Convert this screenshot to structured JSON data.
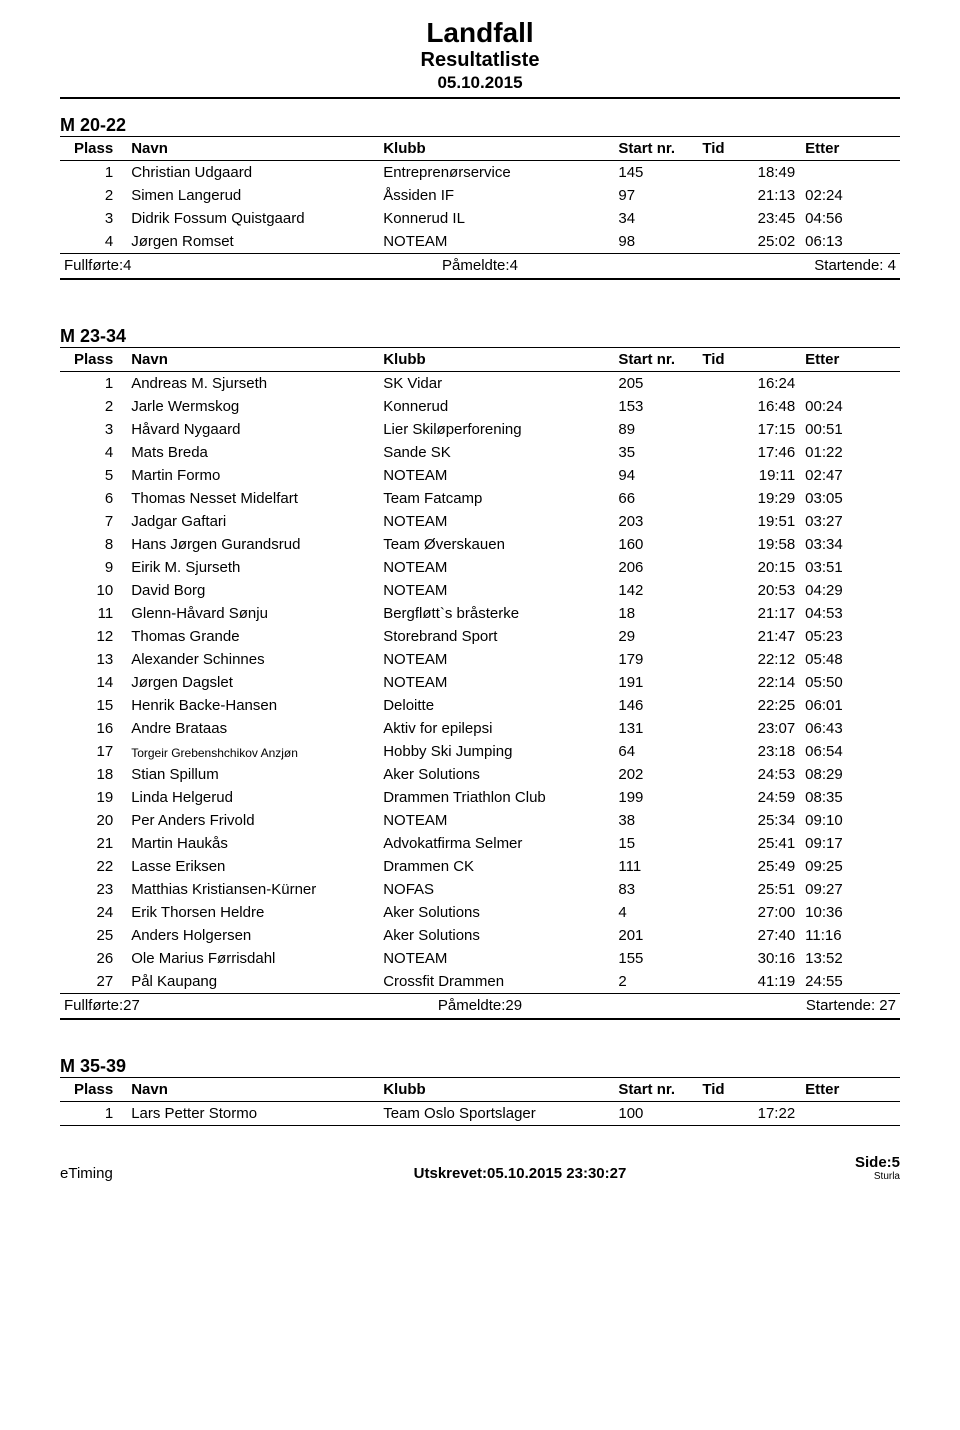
{
  "header": {
    "title": "Landfall",
    "subtitle": "Resultatliste",
    "date": "05.10.2015"
  },
  "columns": {
    "plass": "Plass",
    "navn": "Navn",
    "klubb": "Klubb",
    "start": "Start nr.",
    "tid": "Tid",
    "etter": "Etter"
  },
  "summary_labels": {
    "fullforte": "Fullførte:",
    "pameldte": "Påmeldte:",
    "startende": "Startende:"
  },
  "sections": [
    {
      "name": "M 20-22",
      "rows": [
        {
          "p": "1",
          "navn": "Christian Udgaard",
          "klubb": "Entreprenørservice",
          "start": "145",
          "tid": "18:49",
          "etter": ""
        },
        {
          "p": "2",
          "navn": "Simen Langerud",
          "klubb": "Åssiden IF",
          "start": "97",
          "tid": "21:13",
          "etter": "02:24"
        },
        {
          "p": "3",
          "navn": "Didrik Fossum Quistgaard",
          "klubb": "Konnerud IL",
          "start": "34",
          "tid": "23:45",
          "etter": "04:56"
        },
        {
          "p": "4",
          "navn": "Jørgen Romset",
          "klubb": "NOTEAM",
          "start": "98",
          "tid": "25:02",
          "etter": "06:13"
        }
      ],
      "summary": {
        "fullforte": "4",
        "pameldte": "4",
        "startende": "4"
      }
    },
    {
      "name": "M 23-34",
      "rows": [
        {
          "p": "1",
          "navn": "Andreas M. Sjurseth",
          "klubb": "SK Vidar",
          "start": "205",
          "tid": "16:24",
          "etter": ""
        },
        {
          "p": "2",
          "navn": "Jarle Wermskog",
          "klubb": "Konnerud",
          "start": "153",
          "tid": "16:48",
          "etter": "00:24"
        },
        {
          "p": "3",
          "navn": "Håvard Nygaard",
          "klubb": "Lier Skiløperforening",
          "start": "89",
          "tid": "17:15",
          "etter": "00:51"
        },
        {
          "p": "4",
          "navn": "Mats Breda",
          "klubb": "Sande SK",
          "start": "35",
          "tid": "17:46",
          "etter": "01:22"
        },
        {
          "p": "5",
          "navn": "Martin Formo",
          "klubb": "NOTEAM",
          "start": "94",
          "tid": "19:11",
          "etter": "02:47"
        },
        {
          "p": "6",
          "navn": "Thomas Nesset Midelfart",
          "klubb": "Team Fatcamp",
          "start": "66",
          "tid": "19:29",
          "etter": "03:05"
        },
        {
          "p": "7",
          "navn": "Jadgar Gaftari",
          "klubb": "NOTEAM",
          "start": "203",
          "tid": "19:51",
          "etter": "03:27"
        },
        {
          "p": "8",
          "navn": "Hans Jørgen Gurandsrud",
          "klubb": "Team Øverskauen",
          "start": "160",
          "tid": "19:58",
          "etter": "03:34"
        },
        {
          "p": "9",
          "navn": "Eirik M. Sjurseth",
          "klubb": "NOTEAM",
          "start": "206",
          "tid": "20:15",
          "etter": "03:51"
        },
        {
          "p": "10",
          "navn": "David Borg",
          "klubb": "NOTEAM",
          "start": "142",
          "tid": "20:53",
          "etter": "04:29"
        },
        {
          "p": "11",
          "navn": "Glenn-Håvard Sønju",
          "klubb": "Bergfløtt`s bråsterke",
          "start": "18",
          "tid": "21:17",
          "etter": "04:53"
        },
        {
          "p": "12",
          "navn": "Thomas Grande",
          "klubb": "Storebrand Sport",
          "start": "29",
          "tid": "21:47",
          "etter": "05:23"
        },
        {
          "p": "13",
          "navn": "Alexander Schinnes",
          "klubb": "NOTEAM",
          "start": "179",
          "tid": "22:12",
          "etter": "05:48"
        },
        {
          "p": "14",
          "navn": "Jørgen Dagslet",
          "klubb": "NOTEAM",
          "start": "191",
          "tid": "22:14",
          "etter": "05:50"
        },
        {
          "p": "15",
          "navn": "Henrik Backe-Hansen",
          "klubb": "Deloitte",
          "start": "146",
          "tid": "22:25",
          "etter": "06:01"
        },
        {
          "p": "16",
          "navn": "Andre Brataas",
          "klubb": "Aktiv for epilepsi",
          "start": "131",
          "tid": "23:07",
          "etter": "06:43"
        },
        {
          "p": "17",
          "navn": "Torgeir Grebenshchikov Anzjøn",
          "klubb": "Hobby Ski Jumping",
          "start": "64",
          "tid": "23:18",
          "etter": "06:54",
          "small": true
        },
        {
          "p": "18",
          "navn": "Stian Spillum",
          "klubb": "Aker Solutions",
          "start": "202",
          "tid": "24:53",
          "etter": "08:29"
        },
        {
          "p": "19",
          "navn": "Linda Helgerud",
          "klubb": "Drammen Triathlon Club",
          "start": "199",
          "tid": "24:59",
          "etter": "08:35"
        },
        {
          "p": "20",
          "navn": "Per Anders Frivold",
          "klubb": "NOTEAM",
          "start": "38",
          "tid": "25:34",
          "etter": "09:10"
        },
        {
          "p": "21",
          "navn": "Martin Haukås",
          "klubb": "Advokatfirma Selmer",
          "start": "15",
          "tid": "25:41",
          "etter": "09:17"
        },
        {
          "p": "22",
          "navn": "Lasse Eriksen",
          "klubb": "Drammen CK",
          "start": "111",
          "tid": "25:49",
          "etter": "09:25"
        },
        {
          "p": "23",
          "navn": "Matthias Kristiansen-Kürner",
          "klubb": "NOFAS",
          "start": "83",
          "tid": "25:51",
          "etter": "09:27"
        },
        {
          "p": "24",
          "navn": "Erik Thorsen Heldre",
          "klubb": "Aker Solutions",
          "start": "4",
          "tid": "27:00",
          "etter": "10:36"
        },
        {
          "p": "25",
          "navn": "Anders Holgersen",
          "klubb": "Aker Solutions",
          "start": "201",
          "tid": "27:40",
          "etter": "11:16"
        },
        {
          "p": "26",
          "navn": "Ole Marius Førrisdahl",
          "klubb": "NOTEAM",
          "start": "155",
          "tid": "30:16",
          "etter": "13:52"
        },
        {
          "p": "27",
          "navn": "Pål Kaupang",
          "klubb": "Crossfit Drammen",
          "start": "2",
          "tid": "41:19",
          "etter": "24:55"
        }
      ],
      "summary": {
        "fullforte": "27",
        "pameldte": "29",
        "startende": "27"
      }
    },
    {
      "name": "M 35-39",
      "rows": [
        {
          "p": "1",
          "navn": "Lars Petter Stormo",
          "klubb": "Team Oslo Sportslager",
          "start": "100",
          "tid": "17:22",
          "etter": ""
        }
      ]
    }
  ],
  "footer": {
    "left": "eTiming",
    "center": "Utskrevet:05.10.2015 23:30:27",
    "right": "Side:5",
    "tiny": "Sturla"
  }
}
